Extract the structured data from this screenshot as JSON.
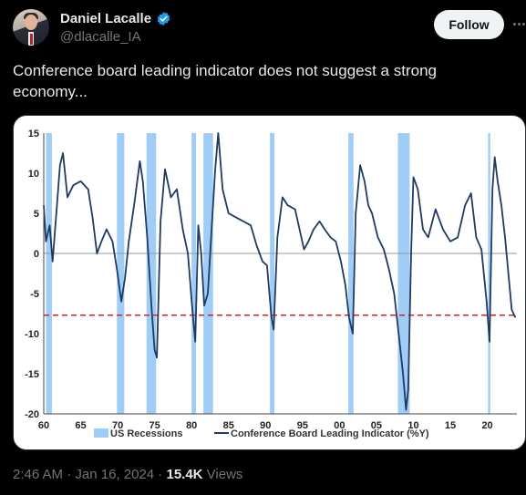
{
  "author": {
    "name": "Daniel Lacalle",
    "handle": "@dlacalle_IA",
    "verified_icon": "verified-badge-icon",
    "verified_color": "#1d9bf0"
  },
  "follow_label": "Follow",
  "tweet_text": "Conference board leading indicator does not suggest a strong economy...",
  "meta": {
    "time": "2:46 AM",
    "sep1": " · ",
    "date": "Jan 16, 2024",
    "sep2": " · ",
    "views_count": "15.4K",
    "views_label": " Views"
  },
  "chart_data": {
    "type": "line",
    "title": "",
    "xlabel": "",
    "ylabel": "",
    "xlim": [
      1960,
      2024
    ],
    "ylim": [
      -20,
      15
    ],
    "x_ticks": [
      "60",
      "65",
      "70",
      "75",
      "80",
      "85",
      "90",
      "95",
      "00",
      "05",
      "10",
      "15",
      "20"
    ],
    "y_ticks": [
      "15",
      "10",
      "5",
      "0",
      "-5",
      "-10",
      "-15",
      "-20"
    ],
    "legend": {
      "placement": "bottom",
      "recessions": "US Recessions",
      "line": "Conference Board Leading Indicator (%Y)"
    },
    "colors": {
      "line": "#1f3a63",
      "recession": "#9fcdf5",
      "reference": "#e02020",
      "zero": "#999999"
    },
    "reference_line": -7.7,
    "recessions": [
      [
        1960.3,
        1961.1
      ],
      [
        1969.9,
        1970.9
      ],
      [
        1973.9,
        1975.2
      ],
      [
        1980.0,
        1980.6
      ],
      [
        1981.6,
        1982.9
      ],
      [
        1990.6,
        1991.2
      ],
      [
        2001.2,
        2001.9
      ],
      [
        2007.9,
        2009.5
      ],
      [
        2020.1,
        2020.4
      ]
    ],
    "series": [
      {
        "name": "Conference Board Leading Indicator (%Y)",
        "x": [
          1960,
          1960.3,
          1960.8,
          1961.2,
          1961.7,
          1962.2,
          1962.6,
          1963.2,
          1964.0,
          1965.0,
          1966.0,
          1966.6,
          1967.2,
          1967.8,
          1968.5,
          1969.3,
          1969.9,
          1970.5,
          1971.0,
          1971.5,
          1972.3,
          1973.0,
          1973.4,
          1974.0,
          1974.6,
          1975.0,
          1975.3,
          1975.8,
          1976.4,
          1977.2,
          1978.0,
          1978.8,
          1979.5,
          1980.1,
          1980.5,
          1980.9,
          1981.3,
          1981.7,
          1982.2,
          1982.7,
          1983.2,
          1983.6,
          1984.2,
          1985.0,
          1986.0,
          1987.0,
          1988.0,
          1988.8,
          1989.6,
          1990.2,
          1990.8,
          1991.1,
          1991.6,
          1992.3,
          1993.0,
          1994.0,
          1994.6,
          1995.2,
          1995.8,
          1996.5,
          1997.3,
          1998.0,
          1998.8,
          1999.5,
          2000.2,
          2000.8,
          2001.3,
          2001.8,
          2002.2,
          2002.8,
          2003.4,
          2003.9,
          2004.4,
          2005.2,
          2006.0,
          2006.7,
          2007.4,
          2008.0,
          2008.6,
          2009.0,
          2009.3,
          2009.7,
          2010.0,
          2010.6,
          2011.3,
          2012.0,
          2013.0,
          2014.0,
          2015.0,
          2016.0,
          2017.0,
          2017.8,
          2018.5,
          2019.2,
          2019.9,
          2020.3,
          2020.7,
          2021.0,
          2021.4,
          2021.9,
          2022.4,
          2022.9,
          2023.3,
          2023.8
        ],
        "y": [
          6,
          1.5,
          3.5,
          -1,
          5,
          11,
          12.5,
          7,
          8.5,
          9,
          8,
          4.5,
          0,
          1.5,
          3,
          1.5,
          -2,
          -6,
          -3,
          1.5,
          6.5,
          11.5,
          9,
          2,
          -7,
          -12,
          -13,
          4,
          10.5,
          7,
          8,
          3,
          0,
          -7,
          -11,
          3.5,
          0,
          -6.5,
          -5,
          3,
          10.5,
          15,
          8,
          5,
          4.5,
          4,
          3.5,
          1,
          -1,
          -1.5,
          -8,
          -9.5,
          2,
          7,
          6,
          5.5,
          3,
          0.5,
          1.5,
          3,
          4,
          3,
          2,
          1.5,
          -1,
          -4,
          -8,
          -10,
          5,
          11,
          9,
          6,
          5,
          2,
          0.5,
          -2,
          -5,
          -10,
          -15,
          -19.5,
          -17,
          0,
          9.5,
          8,
          3,
          2,
          5.5,
          3,
          1.5,
          2,
          6,
          7.5,
          2,
          0.5,
          -6,
          -11,
          8,
          12,
          9,
          6,
          2,
          -3,
          -7,
          -8
        ]
      }
    ]
  }
}
